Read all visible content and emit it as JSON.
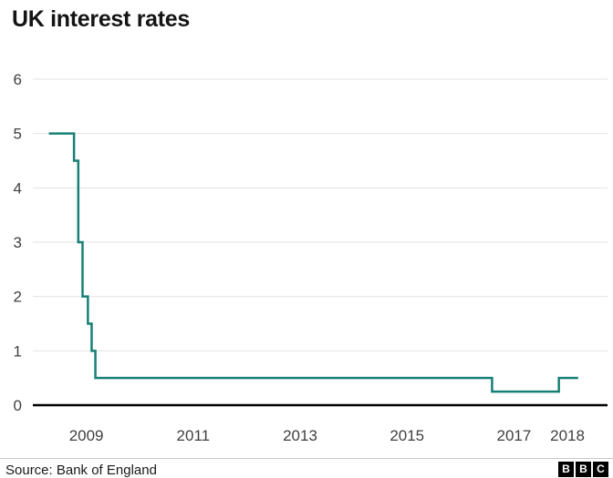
{
  "title": "UK interest rates",
  "source": "Source: Bank of England",
  "logo": [
    "B",
    "B",
    "C"
  ],
  "chart_data": {
    "type": "line",
    "title": "UK interest rates",
    "xlabel": "",
    "ylabel": "",
    "xlim": [
      2008.0,
      2018.75
    ],
    "ylim": [
      0,
      6
    ],
    "x_ticks": [
      2009,
      2011,
      2013,
      2015,
      2017,
      2018
    ],
    "y_ticks": [
      0,
      1,
      2,
      3,
      4,
      5,
      6
    ],
    "grid": true,
    "legend": false,
    "line_color": "#178076",
    "series": [
      {
        "name": "UK interest rates",
        "step": "after",
        "points": [
          {
            "x": 2008.3,
            "y": 5.0
          },
          {
            "x": 2008.77,
            "y": 4.5
          },
          {
            "x": 2008.85,
            "y": 3.0
          },
          {
            "x": 2008.93,
            "y": 2.0
          },
          {
            "x": 2009.03,
            "y": 1.5
          },
          {
            "x": 2009.1,
            "y": 1.0
          },
          {
            "x": 2009.17,
            "y": 0.5
          },
          {
            "x": 2016.59,
            "y": 0.25
          },
          {
            "x": 2017.84,
            "y": 0.5
          },
          {
            "x": 2018.2,
            "y": 0.5
          }
        ]
      }
    ],
    "source": "Source: Bank of England"
  }
}
